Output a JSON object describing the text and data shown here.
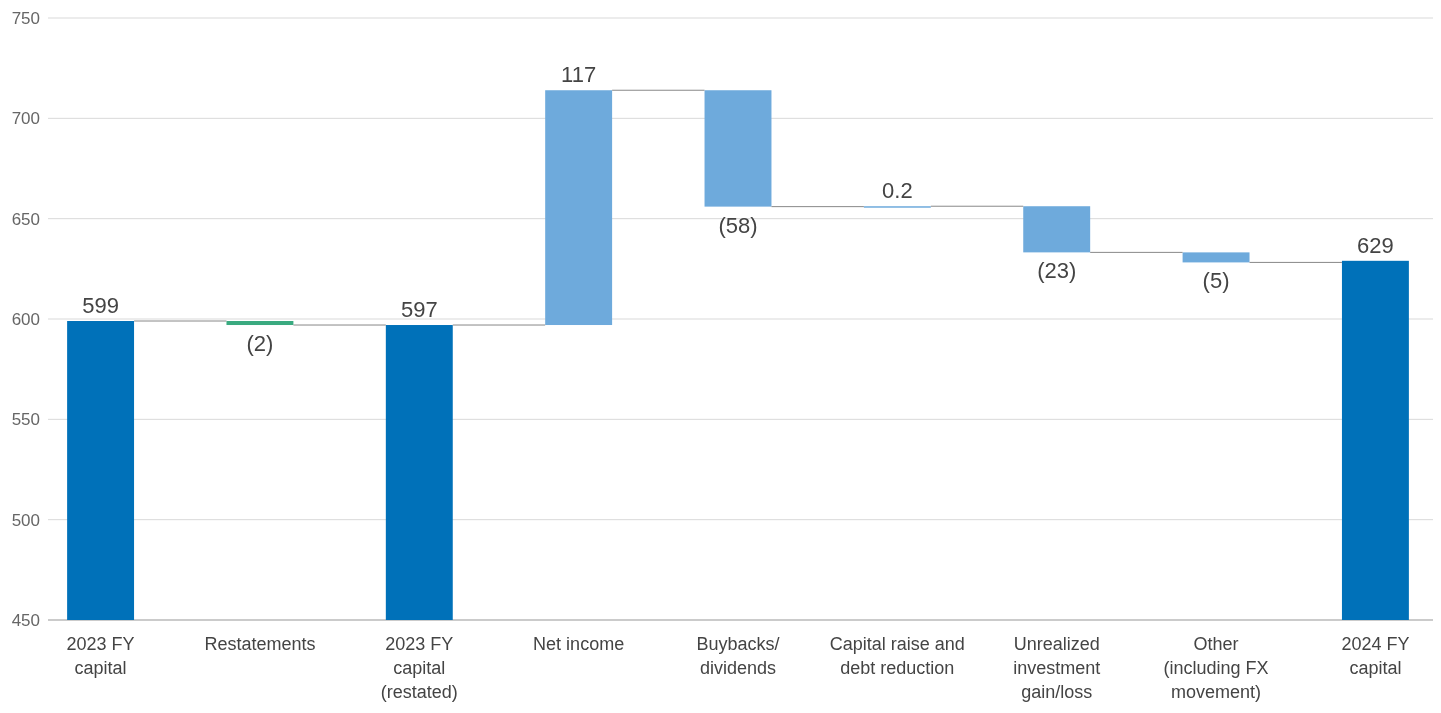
{
  "chart_data": {
    "type": "bar",
    "categories": [
      "2023 FY\ncapital",
      "Restatements",
      "2023 FY\ncapital\n(restated)",
      "Net income",
      "Buybacks/\ndividends",
      "Capital raise and\ndebt reduction",
      "Unrealized\ninvestment\ngain/loss",
      "Other\n(including FX\nmovement)",
      "2024 FY\ncapital"
    ],
    "values": [
      149,
      -2,
      147,
      117,
      -58,
      0.2,
      -23,
      -5,
      179
    ],
    "base": [
      450,
      599,
      450,
      597,
      714,
      656,
      656.2,
      633.2,
      450
    ],
    "colors": [
      "#0071b9",
      "#3aaa80",
      "#0071b9",
      "#6eaadc",
      "#6eaadc",
      "#6eaadc",
      "#6eaadc",
      "#6eaadc",
      "#0071b9"
    ],
    "value_labels": [
      "599",
      "(2)",
      "597",
      "117",
      "(58)",
      "0.2",
      "(23)",
      "(5)",
      "629"
    ],
    "ylim": [
      450,
      750
    ],
    "yticks": [
      450,
      500,
      550,
      600,
      650,
      700,
      750
    ],
    "grid": "y"
  }
}
